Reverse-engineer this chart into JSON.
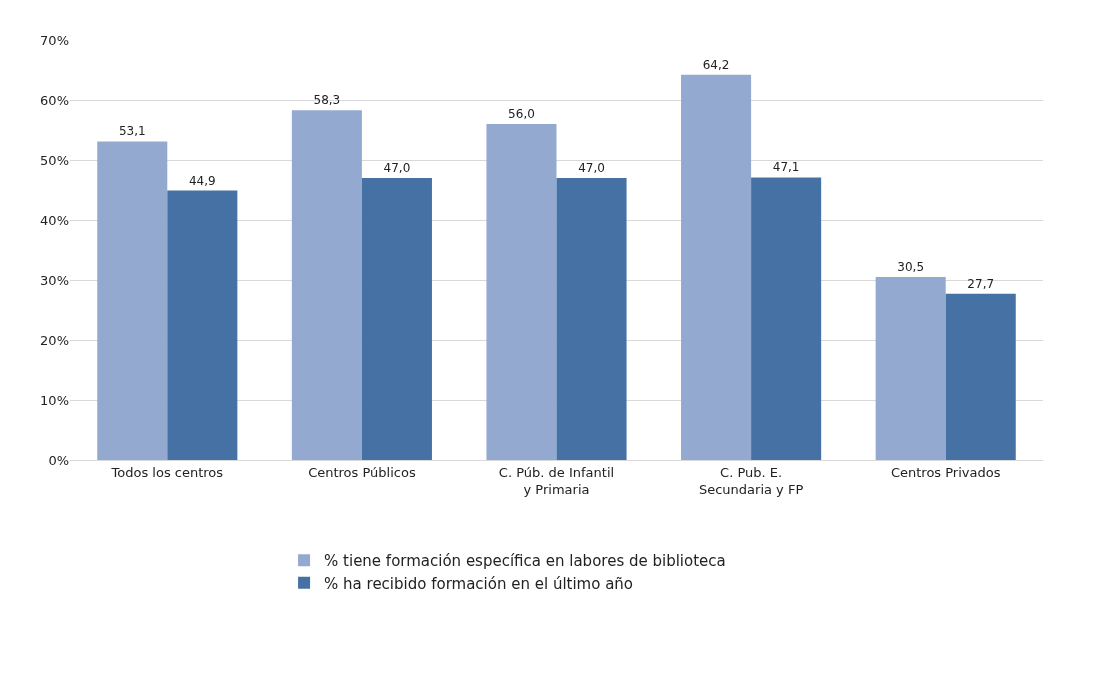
{
  "chart_data": {
    "type": "bar",
    "categories": [
      "Todos los centros",
      "Centros Públicos",
      "C. Púb. de Infantil y Primaria",
      "C. Pub. E. Secundaria y FP",
      "Centros Privados"
    ],
    "series": [
      {
        "name": "% tiene formación específica en labores de biblioteca",
        "color": "#93a9d0",
        "values": [
          53.1,
          58.3,
          56.0,
          64.2,
          30.5
        ],
        "value_labels": [
          "53,1",
          "58,3",
          "56,0",
          "64,2",
          "30,5"
        ]
      },
      {
        "name": "% ha recibido formación en el último año",
        "color": "#4571a5",
        "values": [
          44.9,
          47.0,
          47.0,
          47.1,
          27.7
        ],
        "value_labels": [
          "44,9",
          "47,0",
          "47,0",
          "47,1",
          "27,7"
        ]
      }
    ],
    "ylim": [
      0,
      70
    ],
    "yticks": [
      {
        "value": 0,
        "label": "0%"
      },
      {
        "value": 10,
        "label": "10%"
      },
      {
        "value": 20,
        "label": "20%"
      },
      {
        "value": 30,
        "label": "30%"
      },
      {
        "value": 40,
        "label": "40%"
      },
      {
        "value": 50,
        "label": "50%"
      },
      {
        "value": 60,
        "label": "60%"
      },
      {
        "value": 70,
        "label": "70%"
      }
    ],
    "grid": "y",
    "legend": "bottom"
  }
}
